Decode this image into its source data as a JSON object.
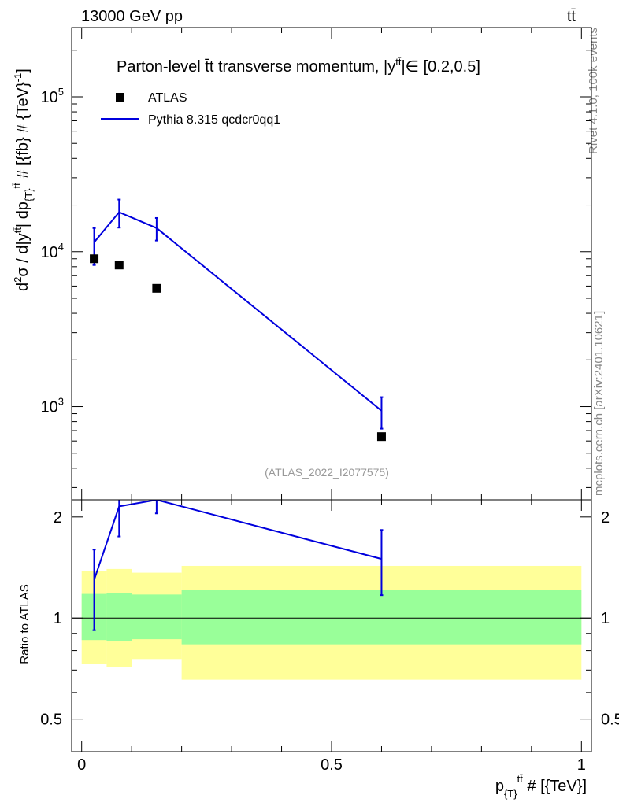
{
  "header": {
    "left": "13000 GeV pp",
    "right": "tt̄"
  },
  "side_text": {
    "rivet": "Rivet 4.1.0,  100k events",
    "mcplots": "mcplots.cern.ch [arXiv:2401.10621]"
  },
  "analysis_id": "(ATLAS_2022_I2077575)",
  "colors": {
    "mc": "#0000dd",
    "data": "#000000",
    "band_inner": "#99ff99",
    "band_outer": "#ffff99"
  },
  "chart_data": [
    {
      "type": "scatter",
      "panel": "main",
      "title": "Parton-level t̄t transverse momentum, |y^{t̄t}| ∈ [0.2,0.5]",
      "title_text": "Parton-level t̄t transverse momentum, |y",
      "title_sup": "tt̄",
      "title_suffix": "|∈ [0.2,0.5]",
      "ylabel": "d²σ / d|y^{tt̄}| dp_{T}^{tt̄} # [{fb} # {TeV}⁻¹]",
      "ylabel_parts": {
        "a": "d",
        "a_sup": "2",
        "b": "σ / d|y",
        "b_sup": "tt̄",
        "c": "| dp",
        "c_sub": "{T}",
        "c_sup": "tt̄",
        "d": " # [{fb} # {TeV}",
        "d_sup": "-1",
        "e": "]"
      },
      "yscale": "log",
      "ylim": [
        250,
        280000
      ],
      "xlim": [
        -0.02,
        1.02
      ],
      "yticks": [
        {
          "value": 1000,
          "base": "10",
          "exp": "3"
        },
        {
          "value": 10000,
          "base": "10",
          "exp": "4"
        },
        {
          "value": 100000,
          "base": "10",
          "exp": "5"
        }
      ],
      "legend_position": "top-left",
      "series": [
        {
          "name": "ATLAS",
          "kind": "data",
          "marker": "square",
          "x": [
            0.025,
            0.075,
            0.15,
            0.6
          ],
          "y": [
            9000,
            8200,
            5800,
            640
          ]
        },
        {
          "name": "Pythia 8.315 qcdcr0qq1",
          "kind": "mc",
          "line": "solid",
          "x": [
            0.025,
            0.075,
            0.15,
            0.6
          ],
          "y": [
            11500,
            18000,
            14200,
            940
          ],
          "yerr_low": [
            8200,
            14300,
            11800,
            720
          ],
          "yerr_high": [
            14200,
            21700,
            16500,
            1150
          ]
        }
      ]
    },
    {
      "type": "line",
      "panel": "ratio",
      "ylabel": "Ratio to ATLAS",
      "yscale": "log",
      "ylim": [
        0.4,
        2.25
      ],
      "xlim": [
        -0.02,
        1.02
      ],
      "yticks": [
        {
          "value": 0.5,
          "label": "0.5"
        },
        {
          "value": 1,
          "label": "1"
        },
        {
          "value": 2,
          "label": "2"
        }
      ],
      "xlabel": "p_{T}^{tt̄} # [{TeV}]",
      "xlabel_parts": {
        "a": "p",
        "a_sub": "{T}",
        "a_sup": "tt̄",
        "b": " # [{TeV}]"
      },
      "xticks": [
        {
          "value": 0,
          "label": "0"
        },
        {
          "value": 0.5,
          "label": "0.5"
        },
        {
          "value": 1,
          "label": "1"
        }
      ],
      "bands": [
        {
          "xlo": 0.0,
          "xhi": 0.05,
          "inner_lo": 0.86,
          "inner_hi": 1.18,
          "outer_lo": 0.73,
          "outer_hi": 1.38
        },
        {
          "xlo": 0.05,
          "xhi": 0.1,
          "inner_lo": 0.855,
          "inner_hi": 1.19,
          "outer_lo": 0.715,
          "outer_hi": 1.4
        },
        {
          "xlo": 0.1,
          "xhi": 0.2,
          "inner_lo": 0.865,
          "inner_hi": 1.175,
          "outer_lo": 0.755,
          "outer_hi": 1.365
        },
        {
          "xlo": 0.2,
          "xhi": 1.0,
          "inner_lo": 0.835,
          "inner_hi": 1.215,
          "outer_lo": 0.655,
          "outer_hi": 1.43
        }
      ],
      "reference": 1,
      "series": [
        {
          "name": "Pythia 8.315 qcdcr0qq1",
          "x": [
            0.025,
            0.075,
            0.15,
            0.6
          ],
          "y": [
            1.3,
            2.15,
            2.25,
            1.5
          ],
          "yerr_low": [
            0.92,
            1.75,
            2.05,
            1.17
          ],
          "yerr_high": [
            1.6,
            2.3,
            2.3,
            1.83
          ]
        }
      ]
    }
  ]
}
